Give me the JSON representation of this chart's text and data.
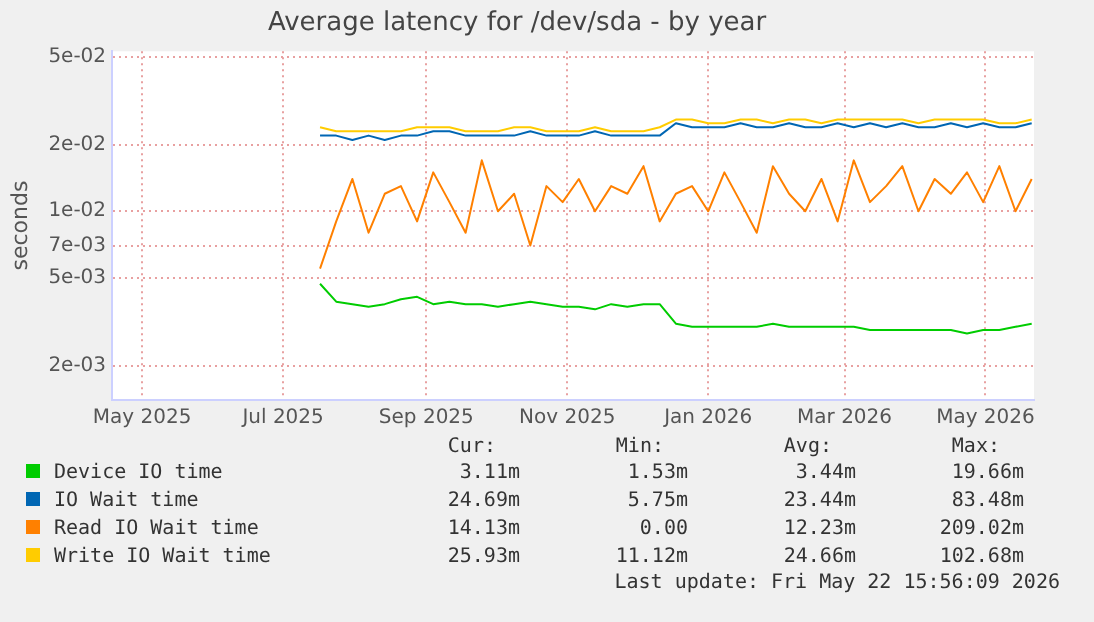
{
  "chart_data": {
    "type": "line",
    "title": "Average latency for /dev/sda - by year",
    "ylabel": "seconds",
    "log": "y",
    "grid": true,
    "legend": "bottom",
    "marker": "none",
    "line_style": "solid",
    "x": [
      "2025-07-17",
      "2025-07-24",
      "2025-07-31",
      "2025-08-07",
      "2025-08-14",
      "2025-08-21",
      "2025-08-28",
      "2025-09-04",
      "2025-09-11",
      "2025-09-18",
      "2025-09-25",
      "2025-10-02",
      "2025-10-09",
      "2025-10-16",
      "2025-10-23",
      "2025-10-30",
      "2025-11-06",
      "2025-11-13",
      "2025-11-20",
      "2025-11-27",
      "2025-12-04",
      "2025-12-11",
      "2025-12-18",
      "2025-12-25",
      "2026-01-01",
      "2026-01-08",
      "2026-01-15",
      "2026-01-22",
      "2026-01-29",
      "2026-02-05",
      "2026-02-12",
      "2026-02-19",
      "2026-02-26",
      "2026-03-05",
      "2026-03-12",
      "2026-03-19",
      "2026-03-26",
      "2026-04-02",
      "2026-04-09",
      "2026-04-16",
      "2026-04-23",
      "2026-04-30",
      "2026-05-07",
      "2026-05-14",
      "2026-05-21"
    ],
    "xlim": [
      "2025-04-18",
      "2026-05-22"
    ],
    "xticks": [
      {
        "value": "2025-05-01",
        "label": "May 2025"
      },
      {
        "value": "2025-07-01",
        "label": "Jul 2025"
      },
      {
        "value": "2025-09-01",
        "label": "Sep 2025"
      },
      {
        "value": "2025-11-01",
        "label": "Nov 2025"
      },
      {
        "value": "2026-01-01",
        "label": "Jan 2026"
      },
      {
        "value": "2026-03-01",
        "label": "Mar 2026"
      },
      {
        "value": "2026-05-01",
        "label": "May 2026"
      }
    ],
    "ylim": [
      0.0014,
      0.053
    ],
    "yticks": [
      {
        "value": 0.002,
        "label": "2e-03"
      },
      {
        "value": 0.005,
        "label": "5e-03"
      },
      {
        "value": 0.007,
        "label": "7e-03"
      },
      {
        "value": 0.01,
        "label": "1e-02"
      },
      {
        "value": 0.02,
        "label": "2e-02"
      },
      {
        "value": 0.05,
        "label": "5e-02"
      }
    ],
    "series": [
      {
        "name": "Device IO time",
        "color": "#00cc00",
        "values": [
          0.0047,
          0.0039,
          0.0038,
          0.0037,
          0.0038,
          0.004,
          0.0041,
          0.0038,
          0.0039,
          0.0038,
          0.0038,
          0.0037,
          0.0038,
          0.0039,
          0.0038,
          0.0037,
          0.0037,
          0.0036,
          0.0038,
          0.0037,
          0.0038,
          0.0038,
          0.0031,
          0.003,
          0.003,
          0.003,
          0.003,
          0.003,
          0.0031,
          0.003,
          0.003,
          0.003,
          0.003,
          0.003,
          0.0029,
          0.0029,
          0.0029,
          0.0029,
          0.0029,
          0.0029,
          0.0028,
          0.0029,
          0.0029,
          0.003,
          0.0031
        ]
      },
      {
        "name": "IO Wait time",
        "color": "#0066b3",
        "values": [
          0.022,
          0.022,
          0.021,
          0.022,
          0.021,
          0.022,
          0.022,
          0.023,
          0.023,
          0.022,
          0.022,
          0.022,
          0.022,
          0.023,
          0.022,
          0.022,
          0.022,
          0.023,
          0.022,
          0.022,
          0.022,
          0.022,
          0.025,
          0.024,
          0.024,
          0.024,
          0.025,
          0.024,
          0.024,
          0.025,
          0.024,
          0.024,
          0.025,
          0.024,
          0.025,
          0.024,
          0.025,
          0.024,
          0.024,
          0.025,
          0.024,
          0.025,
          0.024,
          0.024,
          0.025
        ]
      },
      {
        "name": "Read IO Wait time",
        "color": "#ff8000",
        "values": [
          0.0055,
          0.009,
          0.014,
          0.008,
          0.012,
          0.013,
          0.009,
          0.015,
          0.011,
          0.008,
          0.017,
          0.01,
          0.012,
          0.007,
          0.013,
          0.011,
          0.014,
          0.01,
          0.013,
          0.012,
          0.016,
          0.009,
          0.012,
          0.013,
          0.01,
          0.015,
          0.011,
          0.008,
          0.016,
          0.012,
          0.01,
          0.014,
          0.009,
          0.017,
          0.011,
          0.013,
          0.016,
          0.01,
          0.014,
          0.012,
          0.015,
          0.011,
          0.016,
          0.01,
          0.014
        ]
      },
      {
        "name": "Write IO Wait time",
        "color": "#ffcc00",
        "values": [
          0.024,
          0.023,
          0.023,
          0.023,
          0.023,
          0.023,
          0.024,
          0.024,
          0.024,
          0.023,
          0.023,
          0.023,
          0.024,
          0.024,
          0.023,
          0.023,
          0.023,
          0.024,
          0.023,
          0.023,
          0.023,
          0.024,
          0.026,
          0.026,
          0.025,
          0.025,
          0.026,
          0.026,
          0.025,
          0.026,
          0.026,
          0.025,
          0.026,
          0.026,
          0.026,
          0.026,
          0.026,
          0.025,
          0.026,
          0.026,
          0.026,
          0.026,
          0.025,
          0.025,
          0.026
        ]
      }
    ],
    "annotations": [
      "Cur:",
      "Min:",
      "Avg:",
      "Max:",
      "3.11m",
      "1.53m",
      "3.44m",
      "19.66m",
      "24.69m",
      "5.75m",
      "23.44m",
      "83.48m",
      "14.13m",
      "0.00",
      "12.23m",
      "209.02m",
      "25.93m",
      "11.12m",
      "24.66m",
      "102.68m",
      "Last update: Fri May 22 15:56:09 2026"
    ]
  }
}
